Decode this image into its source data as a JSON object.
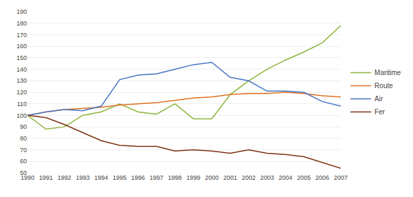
{
  "chart_data": {
    "type": "line",
    "x": [
      1990,
      1991,
      1992,
      1993,
      1994,
      1995,
      1996,
      1997,
      1998,
      1999,
      2000,
      2001,
      2002,
      2003,
      2004,
      2005,
      2006,
      2007
    ],
    "series": [
      {
        "name": "Maritime",
        "color": "#8db43a",
        "values": [
          100,
          88,
          90,
          100,
          103,
          110,
          103,
          101,
          110,
          97,
          97,
          118,
          130,
          140,
          148,
          155,
          163,
          178
        ]
      },
      {
        "name": "Route",
        "color": "#e07020",
        "values": [
          100,
          103,
          105,
          106,
          107,
          109,
          110,
          111,
          113,
          115,
          116,
          118,
          119,
          119,
          120,
          119,
          117,
          116
        ]
      },
      {
        "name": "Air",
        "color": "#4472c4",
        "values": [
          100,
          103,
          105,
          104,
          108,
          131,
          135,
          136,
          140,
          144,
          146,
          133,
          130,
          121,
          121,
          120,
          112,
          108
        ]
      },
      {
        "name": "Fer",
        "color": "#7b3010",
        "values": [
          100,
          98,
          92,
          85,
          78,
          74,
          73,
          73,
          69,
          70,
          69,
          67,
          70,
          67,
          66,
          64,
          59,
          54
        ]
      }
    ],
    "xlim": [
      1990,
      2007
    ],
    "xticks": [
      1990,
      1991,
      1992,
      1993,
      1994,
      1995,
      1996,
      1997,
      1998,
      1999,
      2000,
      2001,
      2002,
      2003,
      2004,
      2005,
      2006,
      2007
    ],
    "ylim": [
      50,
      190
    ],
    "yticks": [
      50,
      60,
      70,
      80,
      90,
      100,
      110,
      120,
      130,
      140,
      150,
      160,
      170,
      180,
      190
    ],
    "grid": "y",
    "legend": "right"
  }
}
